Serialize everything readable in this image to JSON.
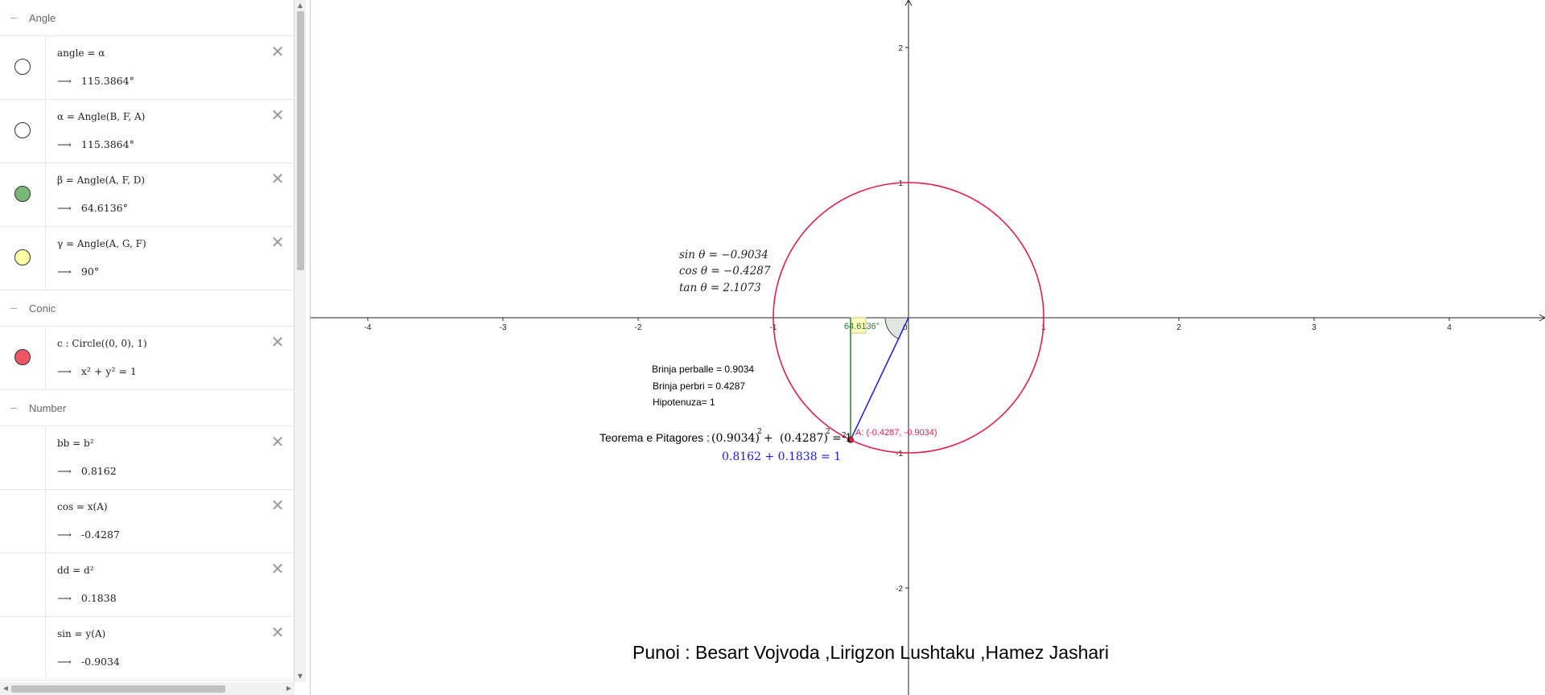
{
  "algebra": {
    "groups": [
      {
        "title": "Angle",
        "items": [
          {
            "definition": "angle = α",
            "value": "115.3864°",
            "marble_color": "#ffffff"
          },
          {
            "definition": "α = Angle(B, F, A)",
            "value": "115.3864°",
            "marble_color": "#ffffff"
          },
          {
            "definition": "β = Angle(A, F, D)",
            "value": "64.6136°",
            "marble_color": "#7ab87a"
          },
          {
            "definition": "γ = Angle(A, G, F)",
            "value": "90°",
            "marble_color": "#ffffa8"
          }
        ]
      },
      {
        "title": "Conic",
        "items": [
          {
            "definition": "c : Circle((0, 0), 1)",
            "value": "x² + y² = 1",
            "marble_color": "#ee5566"
          }
        ]
      },
      {
        "title": "Number",
        "items": [
          {
            "definition": "bb = b²",
            "value": "0.8162",
            "marble_color": null
          },
          {
            "definition": "cos = x(A)",
            "value": "-0.4287",
            "marble_color": null
          },
          {
            "definition": "dd = d²",
            "value": "0.1838",
            "marble_color": null
          },
          {
            "definition": "sin = y(A)",
            "value": "-0.9034",
            "marble_color": null
          }
        ]
      }
    ],
    "arrow": "⟶",
    "close_glyph": "✕"
  },
  "graphics": {
    "x_ticks": [
      "-4",
      "-3",
      "-2",
      "-1",
      "1",
      "2",
      "3",
      "4"
    ],
    "y_ticks": [
      "2",
      "1",
      "-1",
      "-2"
    ],
    "origin_label": "0",
    "trig": {
      "sin_line": "sin θ = −0.9034",
      "cos_line": "cos θ = −0.4287",
      "tan_line": "tan θ = 2.1073"
    },
    "legs": {
      "opposite": "Brinja perballe = 0.9034",
      "adjacent": "Brinja perbri = 0.4287",
      "hypotenuse": "Hipotenuza= 1"
    },
    "pythagoras": {
      "label": "Teorema e Pitagores : ",
      "term1": "(0.9034)",
      "plus": " + ",
      "term2": "(0.4287)",
      "equals": " = 1",
      "exp": "2",
      "sum_line": "0.8162 + 0.1838 = 1"
    },
    "angle_label": "64.6136°",
    "point_label": "A: (-0.4287, -0.9034)",
    "authors": "Punoi : Besart Vojvoda ,Lirigzon Lushtaku ,Hamez Jashari",
    "point": {
      "x": -0.4287,
      "y": -0.9034
    },
    "colors": {
      "circle": "#e0204a",
      "hypotenuse": "#1a1ae6",
      "vertical": "#2e7d32",
      "sum_text": "#1a1ae6",
      "point_label": "#e0204a"
    }
  }
}
